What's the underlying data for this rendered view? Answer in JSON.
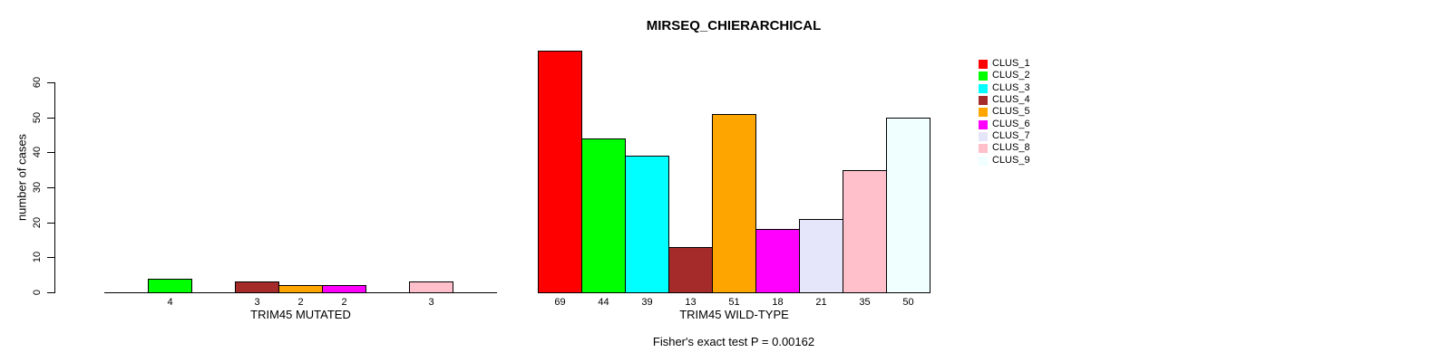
{
  "chart_data": {
    "type": "bar",
    "title": "MIRSEQ_CHIERARCHICAL",
    "ylabel": "number of cases",
    "xlabel": "",
    "ylim": [
      0,
      60
    ],
    "yticks": [
      0,
      10,
      20,
      30,
      40,
      50,
      60
    ],
    "grid": false,
    "legend_position": "right",
    "legend": [
      {
        "label": "CLUS_1",
        "color": "#FF0000"
      },
      {
        "label": "CLUS_2",
        "color": "#00FF00"
      },
      {
        "label": "CLUS_3",
        "color": "#00FFFF"
      },
      {
        "label": "CLUS_4",
        "color": "#A52A2A"
      },
      {
        "label": "CLUS_5",
        "color": "#FFA500"
      },
      {
        "label": "CLUS_6",
        "color": "#FF00FF"
      },
      {
        "label": "CLUS_7",
        "color": "#E6E6FA"
      },
      {
        "label": "CLUS_8",
        "color": "#FFC0CB"
      },
      {
        "label": "CLUS_9",
        "color": "#F0FFFF"
      }
    ],
    "groups": [
      {
        "label": "TRIM45 MUTATED",
        "values": [
          0,
          4,
          0,
          3,
          2,
          2,
          0,
          3,
          0
        ]
      },
      {
        "label": "TRIM45 WILD-TYPE",
        "values": [
          69,
          44,
          39,
          13,
          51,
          18,
          21,
          35,
          50
        ]
      }
    ],
    "annotation": "Fisher's exact test P = 0.00162",
    "axis_color": "#000000",
    "background_color": "#FFFFFF"
  }
}
